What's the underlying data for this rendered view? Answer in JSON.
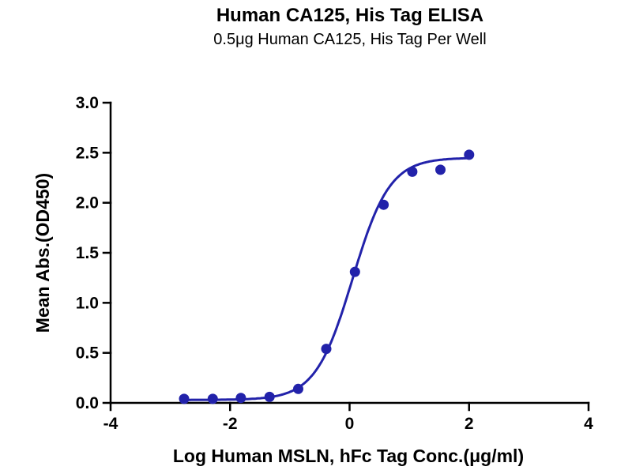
{
  "page": {
    "background": "#ffffff"
  },
  "chart_data": {
    "type": "scatter",
    "title": "Human CA125, His Tag ELISA",
    "subtitle": "0.5μg Human CA125, His Tag Per Well",
    "xlabel": "Log Human MSLN, hFc Tag Conc.(μg/ml)",
    "ylabel": "Mean Abs.(OD450)",
    "xlim": [
      -4,
      4
    ],
    "ylim": [
      0,
      3
    ],
    "x_ticks": [
      -4,
      -2,
      0,
      2,
      4
    ],
    "x_tick_labels": [
      "-4",
      "-2",
      "0",
      "2",
      "4"
    ],
    "y_ticks": [
      0,
      0.5,
      1,
      1.5,
      2,
      2.5,
      3
    ],
    "y_tick_labels": [
      "0.0",
      "0.5",
      "1.0",
      "1.5",
      "2.0",
      "2.5",
      "3.0"
    ],
    "color": "#2222aa",
    "axis_color": "#000000",
    "grid": false,
    "legend": "none",
    "points": [
      {
        "x": -2.77,
        "y": 0.04
      },
      {
        "x": -2.29,
        "y": 0.04
      },
      {
        "x": -1.82,
        "y": 0.05
      },
      {
        "x": -1.34,
        "y": 0.06
      },
      {
        "x": -0.86,
        "y": 0.14
      },
      {
        "x": -0.39,
        "y": 0.54
      },
      {
        "x": 0.09,
        "y": 1.31
      },
      {
        "x": 0.57,
        "y": 1.98
      },
      {
        "x": 1.05,
        "y": 2.31
      },
      {
        "x": 1.52,
        "y": 2.33
      },
      {
        "x": 2.0,
        "y": 2.48
      }
    ],
    "fit_curve": {
      "model": "4PL sigmoid",
      "bottom": 0.03,
      "top": 2.45,
      "log_ec50": 0.05,
      "hill": 1.4,
      "x_start": -2.77,
      "x_end": 2.0
    }
  }
}
